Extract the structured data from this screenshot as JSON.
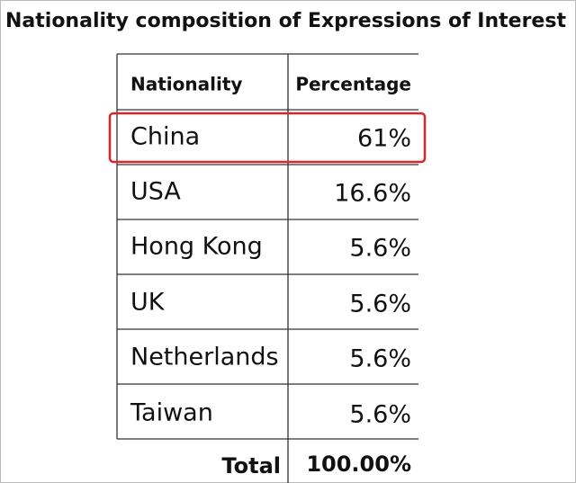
{
  "title": "Nationality composition of Expressions of Interest",
  "table": {
    "header": [
      "Nationality",
      "Percentage"
    ],
    "rows": [
      [
        "China",
        "61%"
      ],
      [
        "USA",
        "16.6%"
      ],
      [
        "Hong Kong",
        "5.6%"
      ],
      [
        "UK",
        "5.6%"
      ],
      [
        "Netherlands",
        "5.6%"
      ],
      [
        "Taiwan",
        "5.6%"
      ]
    ],
    "total": [
      "Total",
      "100.00%"
    ]
  }
}
